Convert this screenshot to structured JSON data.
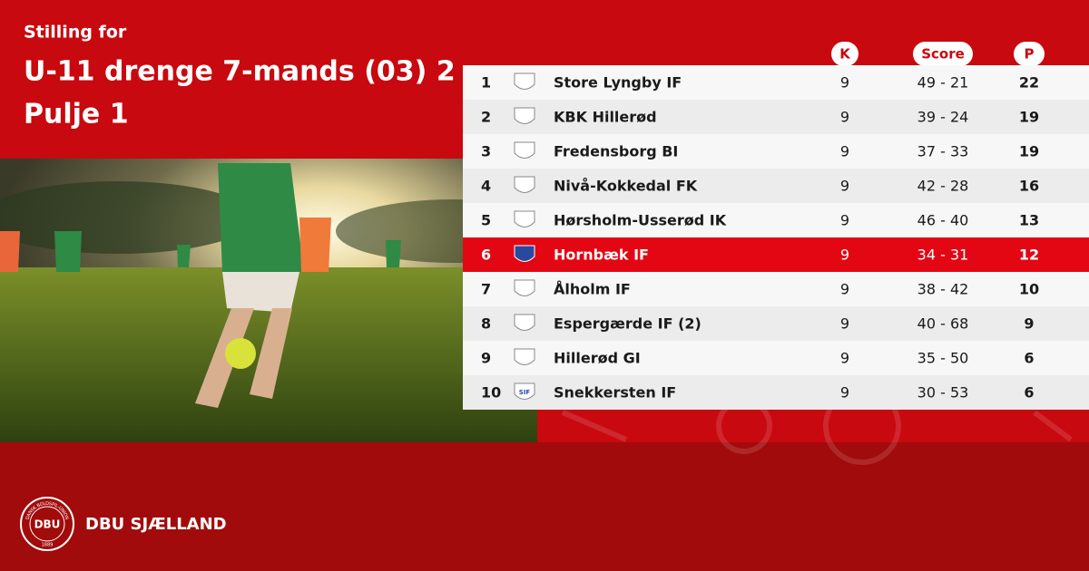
{
  "header": {
    "subtitle": "Stilling for",
    "title_lines": [
      "U-11 drenge 7-mands (03) 2",
      "Pulje 1"
    ]
  },
  "table": {
    "columns": [
      "K",
      "Score",
      "P"
    ],
    "highlight_row": 5,
    "rows": [
      [
        1,
        "Store Lyngby IF",
        9,
        "49 - 21",
        22
      ],
      [
        2,
        "KBK Hillerød",
        9,
        "39 - 24",
        19
      ],
      [
        3,
        "Fredensborg BI",
        9,
        "37 - 33",
        19
      ],
      [
        4,
        "Nivå-Kokkedal FK",
        9,
        "42 - 28",
        16
      ],
      [
        5,
        "Hørsholm-Usserød IK",
        9,
        "46 - 40",
        13
      ],
      [
        6,
        "Hornbæk IF",
        9,
        "34 - 31",
        12
      ],
      [
        7,
        "Ålholm IF",
        9,
        "38 - 42",
        10
      ],
      [
        8,
        "Espergærde IF (2)",
        9,
        "40 - 68",
        9
      ],
      [
        9,
        "Hillerød GI",
        9,
        "35 - 50",
        6
      ],
      [
        10,
        "Snekkersten IF",
        9,
        "30 - 53",
        6
      ]
    ],
    "crest_texts": {
      "9": "SIF"
    }
  },
  "footer": {
    "logo_mark": "DBU",
    "logo_ring": "DANSK BOLDSPIL-UNION",
    "logo_year": "1889",
    "brand": "DBU SJÆLLAND"
  }
}
